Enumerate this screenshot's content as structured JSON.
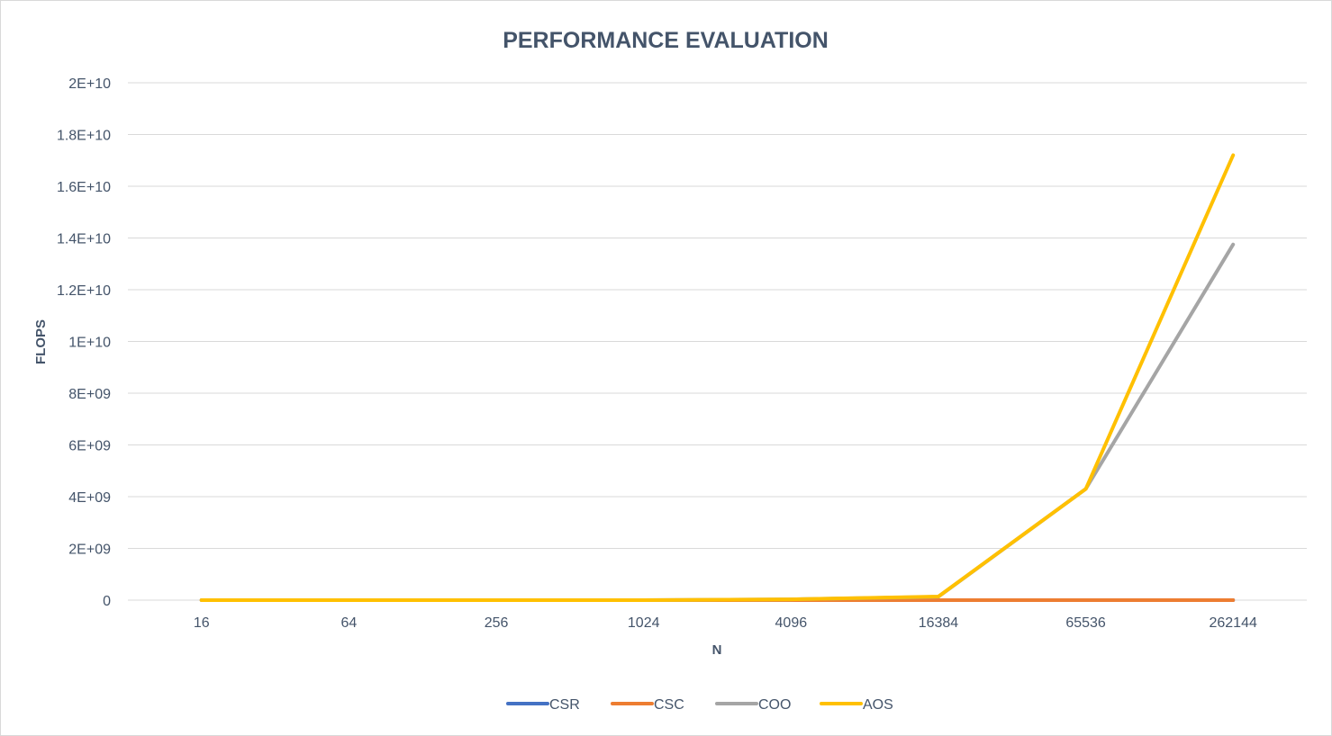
{
  "chart_data": {
    "type": "line",
    "title": "PERFORMANCE EVALUATION",
    "xlabel": "N",
    "ylabel": "FLOPS",
    "categories": [
      "16",
      "64",
      "256",
      "1024",
      "4096",
      "16384",
      "65536",
      "262144"
    ],
    "y_tick_labels": [
      "0",
      "2E+09",
      "4E+09",
      "6E+09",
      "8E+09",
      "1E+10",
      "1.2E+10",
      "1.4E+10",
      "1.6E+10",
      "1.8E+10",
      "2E+10"
    ],
    "y_tick_values": [
      0,
      2000000000,
      4000000000,
      6000000000,
      8000000000,
      10000000000,
      12000000000,
      14000000000,
      16000000000,
      18000000000,
      20000000000
    ],
    "ylim": [
      0,
      20000000000
    ],
    "grid": true,
    "legend_position": "bottom",
    "series": [
      {
        "name": "CSR",
        "color": "#4472c4",
        "values": [
          0,
          0,
          0,
          0,
          0,
          0,
          0,
          0
        ]
      },
      {
        "name": "CSC",
        "color": "#ed7d31",
        "values": [
          0,
          0,
          0,
          0,
          0,
          0,
          0,
          0
        ]
      },
      {
        "name": "COO",
        "color": "#a5a5a5",
        "values": [
          0,
          0,
          0,
          0,
          30000000,
          130000000,
          4300000000,
          13750000000
        ]
      },
      {
        "name": "AOS",
        "color": "#ffc000",
        "values": [
          0,
          0,
          0,
          0,
          30000000,
          140000000,
          4300000000,
          17200000000
        ]
      }
    ]
  }
}
